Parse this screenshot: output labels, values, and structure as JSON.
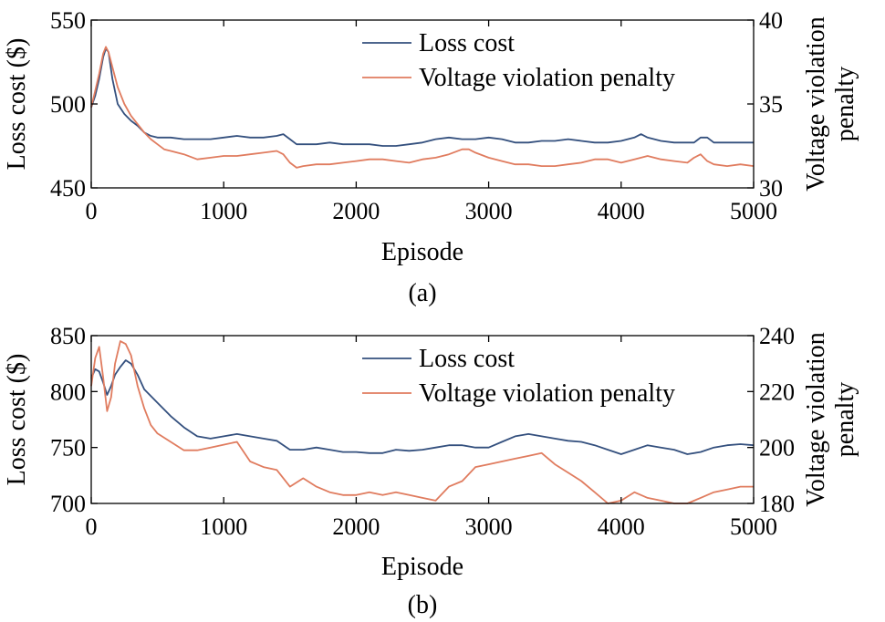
{
  "chart_data": [
    {
      "type": "line",
      "panel_label": "(a)",
      "xlabel": "Episode",
      "ylabel_left": "Loss cost ($)",
      "ylabel_right": [
        "Voltage violation",
        "penalty"
      ],
      "xlim": [
        0,
        5000
      ],
      "ylim_left": [
        450,
        550
      ],
      "ylim_right": [
        30,
        40
      ],
      "xticks": [
        0,
        1000,
        2000,
        3000,
        4000,
        5000
      ],
      "yticks_left": [
        450,
        500,
        550
      ],
      "yticks_right": [
        30,
        35,
        40
      ],
      "legend_position": "top-center",
      "series": [
        {
          "name": "Loss cost",
          "axis": "left",
          "color": "#34507e",
          "x": [
            0,
            30,
            60,
            90,
            110,
            130,
            160,
            200,
            250,
            300,
            350,
            400,
            450,
            500,
            600,
            700,
            800,
            900,
            1000,
            1100,
            1200,
            1300,
            1400,
            1450,
            1500,
            1550,
            1600,
            1700,
            1800,
            1900,
            2000,
            2100,
            2200,
            2300,
            2400,
            2500,
            2600,
            2700,
            2800,
            2900,
            3000,
            3100,
            3200,
            3300,
            3400,
            3500,
            3600,
            3700,
            3800,
            3900,
            4000,
            4100,
            4150,
            4200,
            4300,
            4400,
            4500,
            4550,
            4600,
            4650,
            4700,
            4800,
            4900,
            5000
          ],
          "y": [
            498,
            505,
            515,
            528,
            533,
            531,
            515,
            500,
            494,
            490,
            487,
            483,
            481,
            480,
            480,
            479,
            479,
            479,
            480,
            481,
            480,
            480,
            481,
            482,
            479,
            476,
            476,
            476,
            477,
            476,
            476,
            476,
            475,
            475,
            476,
            477,
            479,
            480,
            479,
            479,
            480,
            479,
            477,
            477,
            478,
            478,
            479,
            478,
            477,
            477,
            478,
            480,
            482,
            480,
            478,
            477,
            477,
            477,
            480,
            480,
            477,
            477,
            477,
            477
          ]
        },
        {
          "name": "Voltage violation penalty",
          "axis": "right",
          "color": "#e07c5f",
          "x": [
            0,
            30,
            60,
            90,
            110,
            130,
            160,
            200,
            250,
            300,
            350,
            400,
            450,
            500,
            550,
            600,
            700,
            800,
            900,
            1000,
            1100,
            1200,
            1300,
            1400,
            1450,
            1500,
            1550,
            1600,
            1700,
            1800,
            1900,
            2000,
            2100,
            2200,
            2300,
            2400,
            2500,
            2600,
            2700,
            2800,
            2850,
            2900,
            3000,
            3100,
            3200,
            3300,
            3400,
            3500,
            3600,
            3700,
            3800,
            3900,
            4000,
            4100,
            4200,
            4300,
            4400,
            4500,
            4550,
            4600,
            4650,
            4700,
            4800,
            4900,
            5000
          ],
          "y": [
            34.8,
            35.8,
            36.8,
            38.0,
            38.4,
            38.1,
            37.2,
            36.0,
            35.0,
            34.3,
            33.8,
            33.3,
            32.9,
            32.6,
            32.3,
            32.2,
            32.0,
            31.7,
            31.8,
            31.9,
            31.9,
            32.0,
            32.1,
            32.2,
            32.0,
            31.5,
            31.2,
            31.3,
            31.4,
            31.4,
            31.5,
            31.6,
            31.7,
            31.7,
            31.6,
            31.5,
            31.7,
            31.8,
            32.0,
            32.3,
            32.3,
            32.1,
            31.8,
            31.6,
            31.4,
            31.4,
            31.3,
            31.3,
            31.4,
            31.5,
            31.7,
            31.7,
            31.5,
            31.7,
            31.9,
            31.7,
            31.6,
            31.5,
            31.8,
            32.0,
            31.6,
            31.4,
            31.3,
            31.4,
            31.3
          ]
        }
      ]
    },
    {
      "type": "line",
      "panel_label": "(b)",
      "xlabel": "Episode",
      "ylabel_left": "Loss cost ($)",
      "ylabel_right": [
        "Voltage violation",
        "penalty"
      ],
      "xlim": [
        0,
        5000
      ],
      "ylim_left": [
        700,
        850
      ],
      "ylim_right": [
        180,
        240
      ],
      "xticks": [
        0,
        1000,
        2000,
        3000,
        4000,
        5000
      ],
      "yticks_left": [
        700,
        750,
        800,
        850
      ],
      "yticks_right": [
        180,
        200,
        220,
        240
      ],
      "legend_position": "top-center",
      "series": [
        {
          "name": "Loss cost",
          "axis": "left",
          "color": "#34507e",
          "x": [
            0,
            30,
            60,
            90,
            120,
            150,
            180,
            220,
            260,
            300,
            350,
            400,
            500,
            600,
            700,
            800,
            900,
            1000,
            1100,
            1200,
            1300,
            1400,
            1500,
            1600,
            1700,
            1800,
            1900,
            2000,
            2100,
            2200,
            2300,
            2400,
            2500,
            2600,
            2700,
            2800,
            2900,
            3000,
            3100,
            3200,
            3300,
            3400,
            3500,
            3600,
            3700,
            3800,
            3900,
            4000,
            4100,
            4200,
            4300,
            4400,
            4500,
            4600,
            4700,
            4800,
            4900,
            5000
          ],
          "y": [
            812,
            820,
            818,
            808,
            797,
            805,
            815,
            822,
            828,
            825,
            815,
            802,
            790,
            778,
            768,
            760,
            758,
            760,
            762,
            760,
            758,
            756,
            748,
            748,
            750,
            748,
            746,
            746,
            745,
            745,
            748,
            747,
            748,
            750,
            752,
            752,
            750,
            750,
            755,
            760,
            762,
            760,
            758,
            756,
            755,
            752,
            748,
            744,
            748,
            752,
            750,
            748,
            744,
            746,
            750,
            752,
            753,
            752
          ]
        },
        {
          "name": "Voltage violation penalty",
          "axis": "right",
          "color": "#e07c5f",
          "x": [
            0,
            30,
            60,
            90,
            120,
            150,
            180,
            220,
            260,
            300,
            350,
            400,
            450,
            500,
            600,
            700,
            800,
            900,
            1000,
            1100,
            1200,
            1300,
            1400,
            1500,
            1600,
            1700,
            1800,
            1900,
            2000,
            2100,
            2200,
            2300,
            2400,
            2500,
            2600,
            2700,
            2800,
            2900,
            3000,
            3100,
            3200,
            3300,
            3400,
            3500,
            3600,
            3700,
            3800,
            3900,
            4000,
            4100,
            4200,
            4300,
            4400,
            4500,
            4600,
            4700,
            4800,
            4900,
            5000
          ],
          "y": [
            222,
            232,
            236,
            225,
            213,
            218,
            230,
            238,
            237,
            233,
            222,
            214,
            208,
            205,
            202,
            199,
            199,
            200,
            201,
            202,
            195,
            193,
            192,
            186,
            189,
            186,
            184,
            183,
            183,
            184,
            183,
            184,
            183,
            182,
            181,
            186,
            188,
            193,
            194,
            195,
            196,
            197,
            198,
            194,
            191,
            188,
            184,
            180,
            181,
            184,
            182,
            181,
            180,
            180,
            182,
            184,
            185,
            186,
            186
          ]
        }
      ]
    }
  ]
}
